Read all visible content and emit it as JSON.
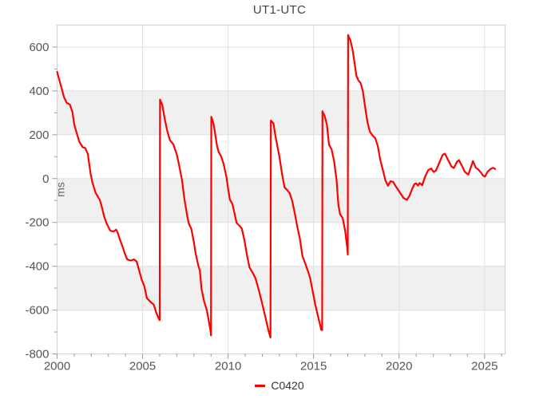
{
  "title": "UT1-UTC",
  "axes": {
    "y_unit_label": "ms"
  },
  "colors": {
    "line": "#ff0000",
    "band": "#f0f0f0",
    "grid": "#e0e0e0",
    "frame": "#d0d0d0",
    "tick": "#999999",
    "tick_text": "#555555",
    "title_text": "#444444",
    "unit_text": "#666666",
    "background": "#ffffff"
  },
  "legend": {
    "items": [
      {
        "label": "C0420",
        "color": "#ff0000"
      }
    ]
  },
  "chart_data": {
    "type": "line",
    "title": "UT1-UTC",
    "xlabel": "",
    "ylabel": "ms",
    "xlim": [
      2000,
      2026.2
    ],
    "ylim": [
      -800,
      700
    ],
    "x_major_ticks": [
      2000,
      2005,
      2010,
      2015,
      2020,
      2025
    ],
    "x_minor_tick_step": 1,
    "y_major_ticks": [
      600,
      400,
      200,
      0,
      -200,
      -400,
      -600,
      -800
    ],
    "y_minor_tick_step": 100,
    "shaded_bands": [
      [
        400,
        200
      ],
      [
        0,
        -200
      ],
      [
        -400,
        -600
      ]
    ],
    "grid": true,
    "legend_position": "bottom-center",
    "series": [
      {
        "name": "C0420",
        "color": "#ff0000",
        "points": [
          [
            2000.0,
            487
          ],
          [
            2000.2,
            430
          ],
          [
            2000.4,
            372
          ],
          [
            2000.55,
            347
          ],
          [
            2000.75,
            337
          ],
          [
            2000.9,
            302
          ],
          [
            2001.0,
            248
          ],
          [
            2001.15,
            207
          ],
          [
            2001.3,
            168
          ],
          [
            2001.5,
            143
          ],
          [
            2001.65,
            139
          ],
          [
            2001.8,
            112
          ],
          [
            2001.95,
            25
          ],
          [
            2002.05,
            -14
          ],
          [
            2002.25,
            -65
          ],
          [
            2002.5,
            -98
          ],
          [
            2002.6,
            -125
          ],
          [
            2002.75,
            -173
          ],
          [
            2002.9,
            -205
          ],
          [
            2003.1,
            -237
          ],
          [
            2003.3,
            -242
          ],
          [
            2003.45,
            -233
          ],
          [
            2003.55,
            -248
          ],
          [
            2003.65,
            -274
          ],
          [
            2003.8,
            -305
          ],
          [
            2003.95,
            -340
          ],
          [
            2004.1,
            -369
          ],
          [
            2004.3,
            -374
          ],
          [
            2004.5,
            -369
          ],
          [
            2004.65,
            -378
          ],
          [
            2004.8,
            -420
          ],
          [
            2004.95,
            -462
          ],
          [
            2005.1,
            -490
          ],
          [
            2005.25,
            -545
          ],
          [
            2005.45,
            -562
          ],
          [
            2005.65,
            -575
          ],
          [
            2005.8,
            -612
          ],
          [
            2005.95,
            -640
          ],
          [
            2006.0,
            -646
          ],
          [
            2006.02,
            360
          ],
          [
            2006.15,
            336
          ],
          [
            2006.3,
            270
          ],
          [
            2006.45,
            215
          ],
          [
            2006.6,
            175
          ],
          [
            2006.8,
            156
          ],
          [
            2007.0,
            110
          ],
          [
            2007.15,
            55
          ],
          [
            2007.3,
            -5
          ],
          [
            2007.45,
            -95
          ],
          [
            2007.6,
            -165
          ],
          [
            2007.7,
            -205
          ],
          [
            2007.85,
            -230
          ],
          [
            2008.0,
            -290
          ],
          [
            2008.1,
            -340
          ],
          [
            2008.25,
            -395
          ],
          [
            2008.35,
            -420
          ],
          [
            2008.45,
            -505
          ],
          [
            2008.6,
            -560
          ],
          [
            2008.75,
            -600
          ],
          [
            2008.85,
            -640
          ],
          [
            2008.97,
            -695
          ],
          [
            2009.0,
            -715
          ],
          [
            2009.02,
            282
          ],
          [
            2009.15,
            250
          ],
          [
            2009.25,
            200
          ],
          [
            2009.35,
            150
          ],
          [
            2009.45,
            122
          ],
          [
            2009.6,
            100
          ],
          [
            2009.75,
            62
          ],
          [
            2009.9,
            8
          ],
          [
            2010.0,
            -45
          ],
          [
            2010.1,
            -95
          ],
          [
            2010.25,
            -115
          ],
          [
            2010.4,
            -168
          ],
          [
            2010.5,
            -203
          ],
          [
            2010.65,
            -214
          ],
          [
            2010.8,
            -228
          ],
          [
            2010.95,
            -280
          ],
          [
            2011.1,
            -348
          ],
          [
            2011.25,
            -405
          ],
          [
            2011.45,
            -432
          ],
          [
            2011.6,
            -455
          ],
          [
            2011.8,
            -510
          ],
          [
            2012.0,
            -572
          ],
          [
            2012.2,
            -638
          ],
          [
            2012.35,
            -690
          ],
          [
            2012.48,
            -725
          ],
          [
            2012.5,
            265
          ],
          [
            2012.65,
            252
          ],
          [
            2012.8,
            180
          ],
          [
            2013.0,
            100
          ],
          [
            2013.15,
            22
          ],
          [
            2013.3,
            -40
          ],
          [
            2013.45,
            -52
          ],
          [
            2013.6,
            -66
          ],
          [
            2013.75,
            -102
          ],
          [
            2013.9,
            -158
          ],
          [
            2014.05,
            -220
          ],
          [
            2014.2,
            -276
          ],
          [
            2014.35,
            -355
          ],
          [
            2014.5,
            -385
          ],
          [
            2014.65,
            -418
          ],
          [
            2014.8,
            -455
          ],
          [
            2014.95,
            -515
          ],
          [
            2015.1,
            -575
          ],
          [
            2015.28,
            -635
          ],
          [
            2015.45,
            -690
          ],
          [
            2015.5,
            -692
          ],
          [
            2015.52,
            307
          ],
          [
            2015.65,
            285
          ],
          [
            2015.78,
            245
          ],
          [
            2015.9,
            155
          ],
          [
            2016.05,
            133
          ],
          [
            2016.2,
            80
          ],
          [
            2016.35,
            -12
          ],
          [
            2016.45,
            -120
          ],
          [
            2016.55,
            -163
          ],
          [
            2016.7,
            -180
          ],
          [
            2016.85,
            -240
          ],
          [
            2016.98,
            -325
          ],
          [
            2017.0,
            -347
          ],
          [
            2017.02,
            655
          ],
          [
            2017.15,
            632
          ],
          [
            2017.28,
            588
          ],
          [
            2017.4,
            525
          ],
          [
            2017.5,
            470
          ],
          [
            2017.62,
            448
          ],
          [
            2017.75,
            436
          ],
          [
            2017.88,
            398
          ],
          [
            2018.0,
            335
          ],
          [
            2018.15,
            258
          ],
          [
            2018.3,
            213
          ],
          [
            2018.45,
            197
          ],
          [
            2018.6,
            185
          ],
          [
            2018.75,
            150
          ],
          [
            2018.9,
            85
          ],
          [
            2019.05,
            40
          ],
          [
            2019.2,
            -8
          ],
          [
            2019.35,
            -33
          ],
          [
            2019.5,
            -12
          ],
          [
            2019.65,
            -15
          ],
          [
            2019.8,
            -35
          ],
          [
            2019.95,
            -52
          ],
          [
            2020.1,
            -70
          ],
          [
            2020.25,
            -88
          ],
          [
            2020.45,
            -97
          ],
          [
            2020.6,
            -80
          ],
          [
            2020.75,
            -50
          ],
          [
            2020.9,
            -25
          ],
          [
            2021.0,
            -22
          ],
          [
            2021.1,
            -32
          ],
          [
            2021.2,
            -20
          ],
          [
            2021.35,
            -30
          ],
          [
            2021.5,
            5
          ],
          [
            2021.7,
            38
          ],
          [
            2021.88,
            46
          ],
          [
            2022.02,
            30
          ],
          [
            2022.15,
            36
          ],
          [
            2022.35,
            72
          ],
          [
            2022.55,
            108
          ],
          [
            2022.68,
            114
          ],
          [
            2022.85,
            88
          ],
          [
            2023.05,
            56
          ],
          [
            2023.2,
            48
          ],
          [
            2023.38,
            76
          ],
          [
            2023.5,
            84
          ],
          [
            2023.68,
            58
          ],
          [
            2023.85,
            30
          ],
          [
            2024.05,
            18
          ],
          [
            2024.2,
            52
          ],
          [
            2024.32,
            80
          ],
          [
            2024.48,
            50
          ],
          [
            2024.65,
            40
          ],
          [
            2024.8,
            26
          ],
          [
            2024.92,
            13
          ],
          [
            2025.02,
            9
          ],
          [
            2025.18,
            32
          ],
          [
            2025.35,
            44
          ],
          [
            2025.5,
            49
          ],
          [
            2025.62,
            44
          ]
        ]
      }
    ]
  }
}
